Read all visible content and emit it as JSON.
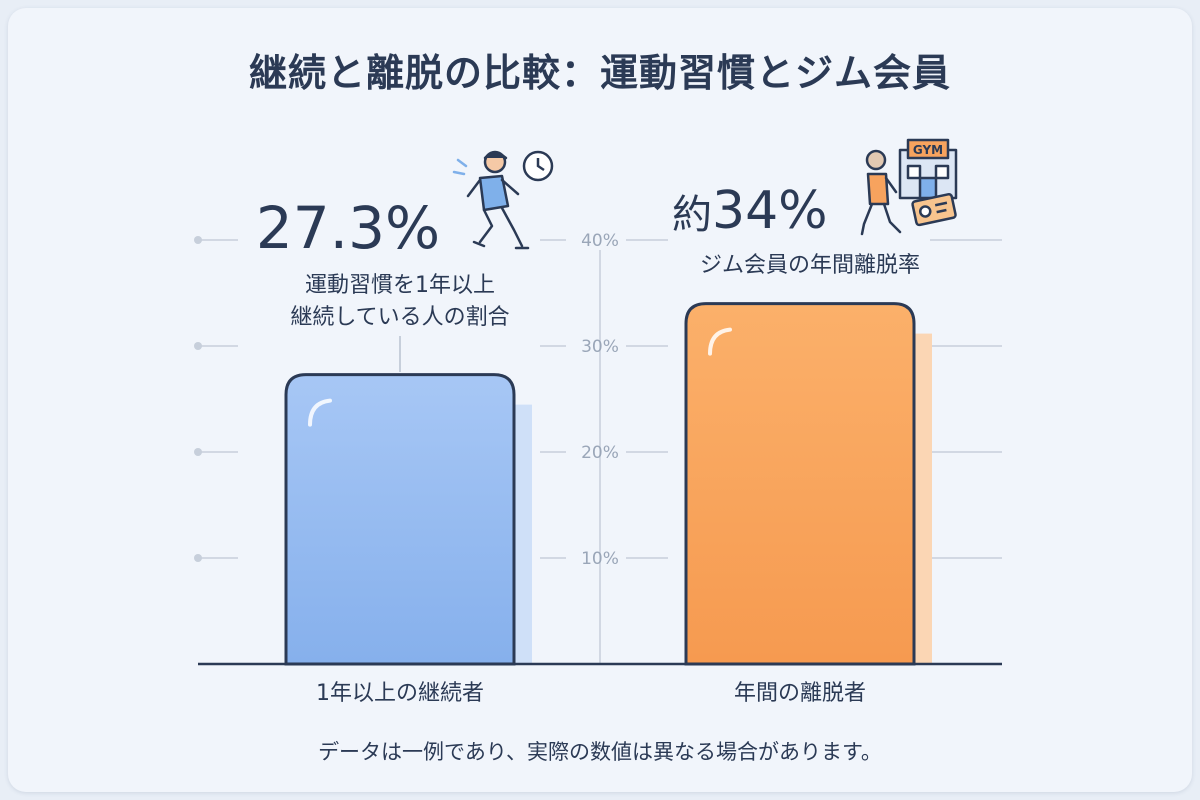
{
  "title": "継続と離脱の比較：運動習慣とジム会員",
  "footnote": "データは一例であり、実際の数値は異なる場合があります。",
  "colors": {
    "continuers": "#8bb4ee",
    "dropouts": "#f7a35e",
    "outline": "#2b3a55",
    "grid": "#c7cfdb"
  },
  "icons": {
    "runner": "runner-icon",
    "clock": "clock-icon",
    "gym": "gym-building-icon",
    "walker": "walking-person-icon",
    "card": "membership-card-icon"
  },
  "chart_data": {
    "type": "bar",
    "categories": [
      "1年以上の継続者",
      "年間の離脱者"
    ],
    "values": [
      27.3,
      34
    ],
    "ylim": [
      0,
      40
    ],
    "yticks": [
      "10%",
      "20%",
      "30%",
      "40%"
    ],
    "grid": true,
    "annotations": [
      {
        "value_label": "27.3%",
        "caption_lines": [
          "運動習慣を1年以上",
          "継続している人の割合"
        ]
      },
      {
        "value_prefix": "約",
        "value_label": "34%",
        "caption_lines": [
          "ジム会員の年間離脱率"
        ]
      }
    ]
  },
  "gym_sign": "GYM"
}
